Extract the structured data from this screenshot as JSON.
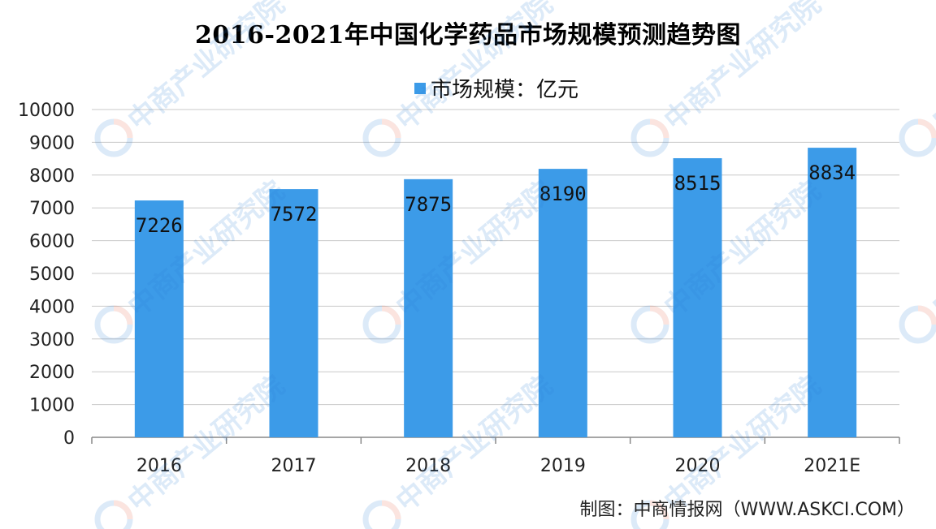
{
  "chart_data": {
    "type": "bar",
    "title": "2016-2021年中国化学药品市场规模预测趋势图",
    "categories": [
      "2016",
      "2017",
      "2018",
      "2019",
      "2020",
      "2021E"
    ],
    "series": [
      {
        "name": "市场规模：亿元",
        "values": [
          7226,
          7572,
          7875,
          8190,
          8515,
          8834
        ]
      }
    ],
    "ylim": [
      0,
      10000
    ],
    "yticks": [
      "0",
      "1000",
      "2000",
      "3000",
      "4000",
      "5000",
      "6000",
      "7000",
      "8000",
      "9000",
      "10000"
    ],
    "grid": true,
    "legend_position": "top-center",
    "bar_color": "#3c9be8",
    "xlabel": "",
    "ylabel": ""
  },
  "source": "制图：中商情报网（WWW.ASKCI.COM）",
  "watermark": "中商产业研究院"
}
